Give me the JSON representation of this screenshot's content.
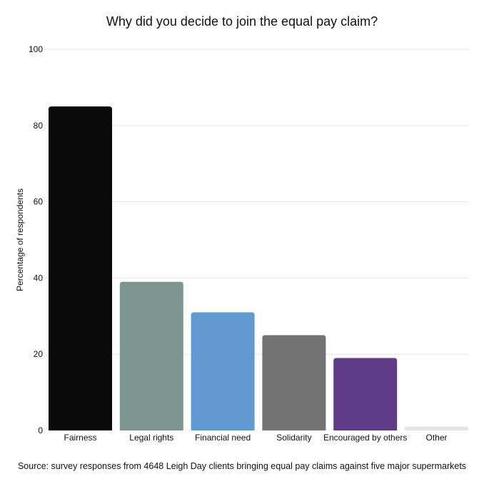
{
  "chart_data": {
    "type": "bar",
    "title": "Why did you decide to join the equal pay claim?",
    "xlabel": "",
    "ylabel": "Percentage of respondents",
    "categories": [
      "Fairness",
      "Legal rights",
      "Financial need",
      "Solidarity",
      "Encouraged by others",
      "Other"
    ],
    "values": [
      85,
      39,
      31,
      25,
      19,
      1
    ],
    "colors": [
      "#0a0a0a",
      "#7c968f",
      "#6199d3",
      "#737373",
      "#603b88",
      "#e4e4e4"
    ],
    "ylim": [
      0,
      100
    ],
    "yticks": [
      "0",
      "20",
      "40",
      "60",
      "80",
      "100"
    ],
    "grid": true,
    "legend": "none",
    "source": "Source: survey responses from 4648 Leigh Day clients bringing equal pay claims against five major supermarkets"
  }
}
